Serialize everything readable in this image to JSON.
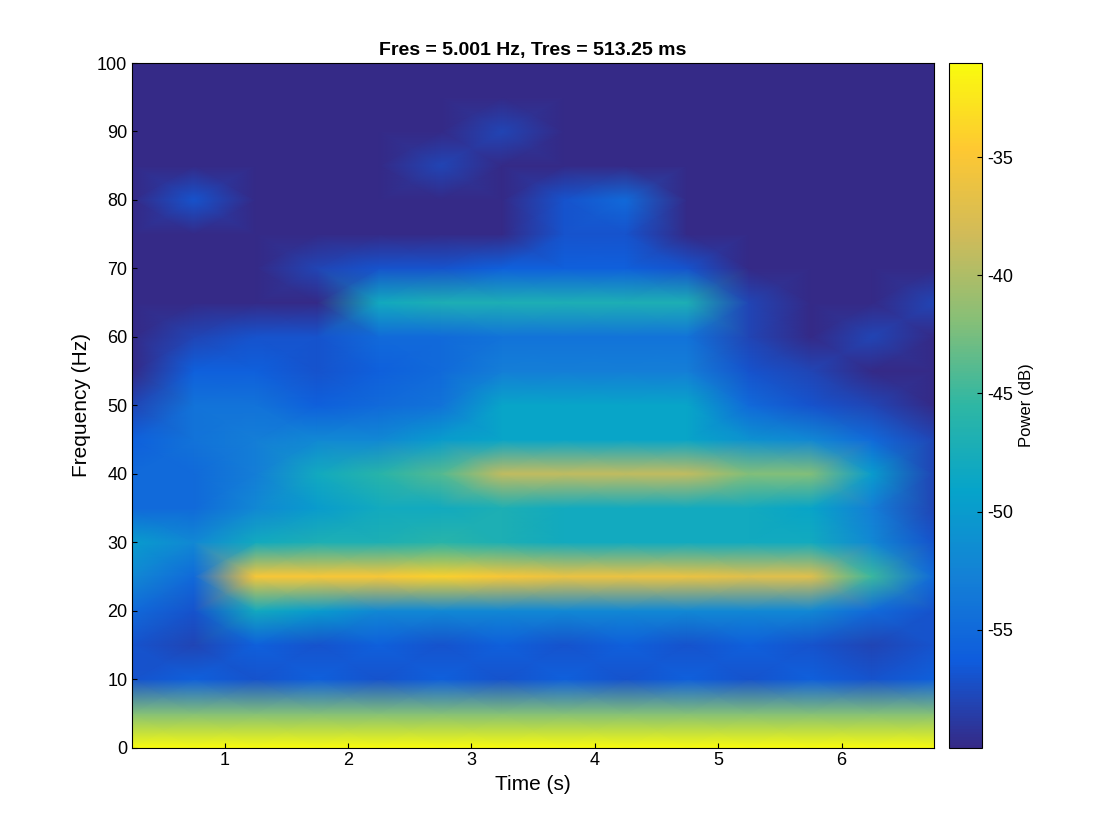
{
  "chart_data": {
    "type": "heatmap",
    "title": "Fres = 5.001 Hz, Tres = 513.25 ms",
    "x_label": "Time (s)",
    "y_label": "Frequency (Hz)",
    "colorbar_label": "Power (dB)",
    "x": [
      0.25,
      0.75,
      1.25,
      1.75,
      2.25,
      2.75,
      3.25,
      3.75,
      4.25,
      4.75,
      5.25,
      5.75,
      6.25,
      6.75
    ],
    "y": [
      0,
      5,
      10,
      15,
      20,
      25,
      30,
      35,
      40,
      45,
      50,
      55,
      60,
      65,
      70,
      75,
      80,
      85,
      90,
      95,
      100
    ],
    "cells": [
      [
        -31,
        -31,
        -31,
        -31,
        -31,
        -31,
        -31,
        -31,
        -31,
        -31,
        -31,
        -31,
        -31,
        -31
      ],
      [
        -42,
        -42,
        -42,
        -42,
        -42,
        -42,
        -42,
        -42,
        -42,
        -42,
        -42,
        -42,
        -42,
        -42
      ],
      [
        -57,
        -56,
        -57,
        -56,
        -57,
        -56,
        -57,
        -56,
        -57,
        -56,
        -57,
        -56,
        -57,
        -56
      ],
      [
        -57,
        -58,
        -56,
        -57,
        -56,
        -57,
        -56,
        -57,
        -56,
        -57,
        -56,
        -57,
        -58,
        -57
      ],
      [
        -55,
        -57,
        -48,
        -50,
        -52,
        -52,
        -52,
        -52,
        -52,
        -52,
        -52,
        -52,
        -55,
        -57
      ],
      [
        -52,
        -55,
        -35,
        -35,
        -35,
        -34,
        -35,
        -36,
        -36,
        -36,
        -37,
        -37,
        -45,
        -55
      ],
      [
        -50,
        -52,
        -48,
        -47,
        -47,
        -46,
        -47,
        -48,
        -48,
        -48,
        -48,
        -48,
        -52,
        -57
      ],
      [
        -55,
        -55,
        -52,
        -50,
        -48,
        -48,
        -47,
        -48,
        -48,
        -48,
        -48,
        -49,
        -53,
        -58
      ],
      [
        -55,
        -55,
        -53,
        -48,
        -46,
        -44,
        -39,
        -39,
        -39,
        -39,
        -42,
        -42,
        -50,
        -58
      ],
      [
        -56,
        -54,
        -53,
        -52,
        -52,
        -50,
        -49,
        -49,
        -49,
        -49,
        -51,
        -52,
        -55,
        -58
      ],
      [
        -58,
        -54,
        -54,
        -56,
        -55,
        -54,
        -49,
        -49,
        -49,
        -49,
        -55,
        -57,
        -58,
        -60
      ],
      [
        -60,
        -56,
        -56,
        -57,
        -56,
        -55,
        -53,
        -53,
        -53,
        -53,
        -57,
        -58,
        -60,
        -60
      ],
      [
        -60,
        -58,
        -57,
        -57,
        -55,
        -55,
        -54,
        -54,
        -54,
        -54,
        -58,
        -60,
        -58,
        -60
      ],
      [
        -60,
        -60,
        -60,
        -60,
        -48,
        -47,
        -47,
        -47,
        -47,
        -47,
        -58,
        -60,
        -60,
        -58
      ],
      [
        -60,
        -60,
        -60,
        -58,
        -57,
        -57,
        -56,
        -56,
        -56,
        -57,
        -60,
        -60,
        -60,
        -60
      ],
      [
        -60,
        -60,
        -60,
        -60,
        -60,
        -60,
        -60,
        -57,
        -57,
        -60,
        -60,
        -60,
        -60,
        -60
      ],
      [
        -60,
        -57,
        -60,
        -60,
        -60,
        -60,
        -60,
        -57,
        -55,
        -60,
        -60,
        -60,
        -60,
        -60
      ],
      [
        -60,
        -60,
        -60,
        -60,
        -60,
        -58,
        -60,
        -60,
        -60,
        -60,
        -60,
        -60,
        -60,
        -60
      ],
      [
        -60,
        -60,
        -60,
        -60,
        -60,
        -60,
        -58,
        -60,
        -60,
        -60,
        -60,
        -60,
        -60,
        -60
      ],
      [
        -60,
        -60,
        -60,
        -60,
        -60,
        -60,
        -60,
        -60,
        -60,
        -60,
        -60,
        -60,
        -60,
        -60
      ],
      [
        -60,
        -60,
        -60,
        -60,
        -60,
        -60,
        -60,
        -60,
        -60,
        -60,
        -60,
        -60,
        -60,
        -60
      ]
    ],
    "xlim": [
      0.25,
      6.75
    ],
    "xticks": [
      1,
      2,
      3,
      4,
      5,
      6
    ],
    "ylim": [
      0,
      100
    ],
    "yticks": [
      0,
      10,
      20,
      30,
      40,
      50,
      60,
      70,
      80,
      90,
      100
    ],
    "colorbar_range": [
      -60,
      -31
    ],
    "colorbar_ticks": [
      -55,
      -50,
      -45,
      -40,
      -35
    ]
  }
}
